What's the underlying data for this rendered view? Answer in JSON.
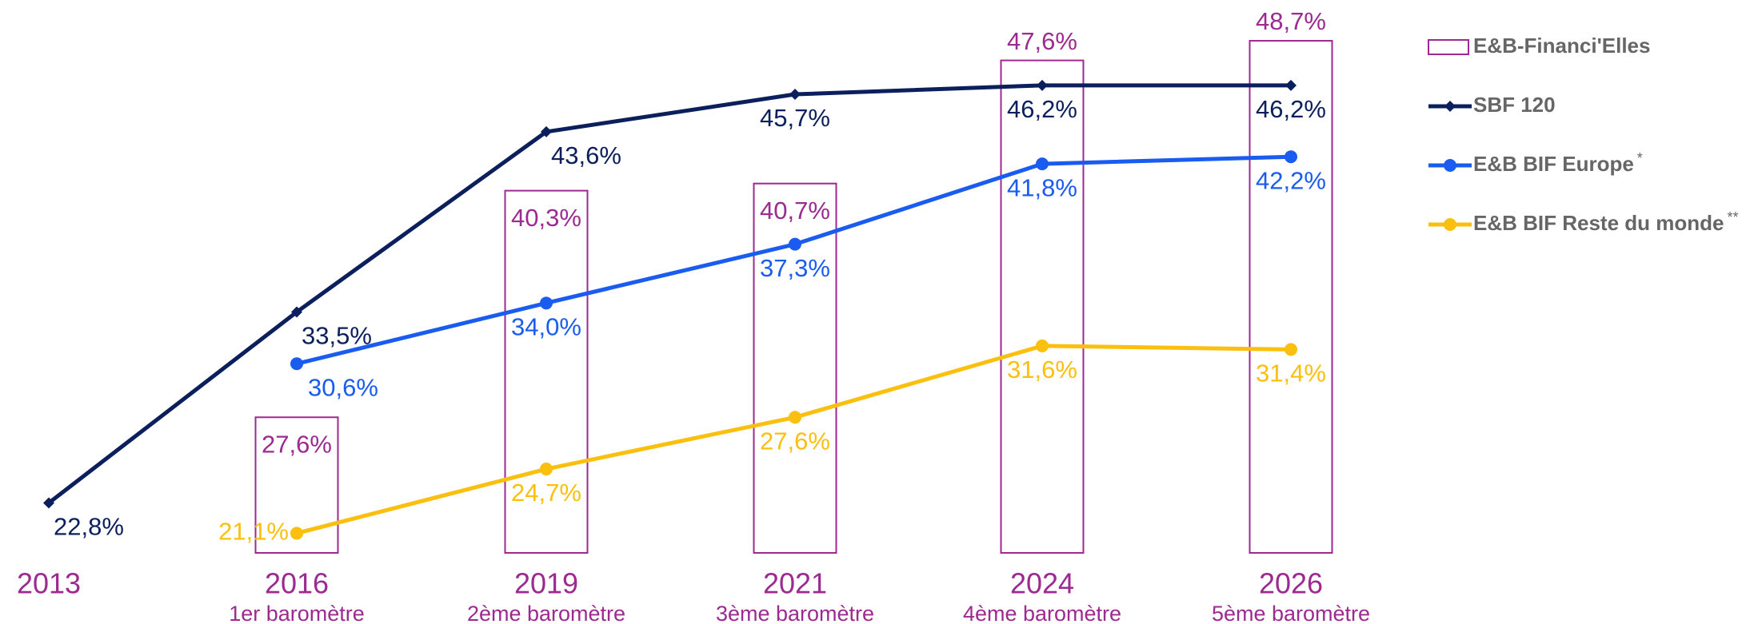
{
  "chart_data": {
    "type": "bar_line",
    "categories": [
      "2013",
      "2016",
      "2019",
      "2021",
      "2024",
      "2026"
    ],
    "sublabels": [
      null,
      "1er baromètre",
      "2ème baromètre",
      "3ème baromètre",
      "4ème baromètre",
      "5ème baromètre"
    ],
    "ylim": [
      20,
      50
    ],
    "series": [
      {
        "name": "E&B-Financi'Elles",
        "type": "bar",
        "color": "#9c2a90",
        "values": [
          null,
          27.6,
          40.3,
          40.7,
          47.6,
          48.7
        ],
        "value_labels": [
          null,
          "27,6%",
          "40,3%",
          "40,7%",
          "47,6%",
          "48,7%"
        ]
      },
      {
        "name": "SBF 120",
        "type": "line",
        "marker": "diamond",
        "color": "#0b1f5c",
        "values": [
          22.8,
          33.5,
          43.6,
          45.7,
          46.2,
          46.2
        ],
        "value_labels": [
          "22,8%",
          "33,5%",
          "43,6%",
          "45,7%",
          "46,2%",
          "46,2%"
        ]
      },
      {
        "name": "E&B BIF Europe",
        "note_mark": "*",
        "type": "line",
        "marker": "circle",
        "color": "#1a5cf0",
        "values": [
          null,
          30.6,
          34.0,
          37.3,
          41.8,
          42.2
        ],
        "value_labels": [
          null,
          "30,6%",
          "34,0%",
          "37,3%",
          "41,8%",
          "42,2%"
        ]
      },
      {
        "name": "E&B BIF Reste du monde",
        "note_mark": "**",
        "type": "line",
        "marker": "circle",
        "color": "#fbbf0e",
        "values": [
          null,
          21.1,
          24.7,
          27.6,
          31.6,
          31.4
        ],
        "value_labels": [
          null,
          "21,1%",
          "24,7%",
          "27,6%",
          "31,6%",
          "31,4%"
        ]
      }
    ],
    "legend": "right"
  }
}
